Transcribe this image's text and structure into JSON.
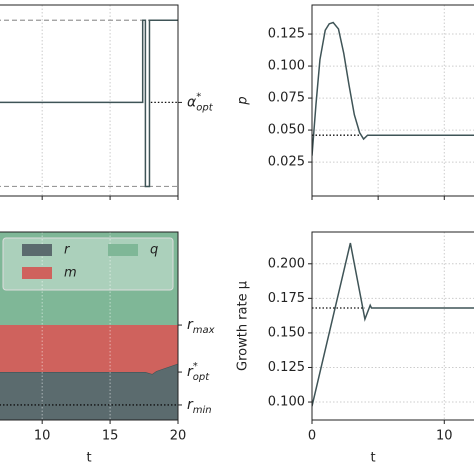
{
  "chart_data": [
    {
      "type": "line",
      "sharex": true,
      "xlim": [
        6.6,
        20
      ],
      "ylim": [
        0,
        1
      ],
      "xticks": [
        10,
        15,
        20
      ],
      "grid": true,
      "x": [
        6.6,
        17.4,
        17.4,
        17.6,
        17.6,
        17.9,
        17.9,
        20
      ],
      "series": [
        {
          "color": "#3f5457",
          "values": [
            0.49,
            0.49,
            0.92,
            0.92,
            0.05,
            0.05,
            0.92,
            0.92
          ]
        }
      ],
      "bounds": [
        0.05,
        0.92
      ],
      "refs": [
        {
          "value": 0.49,
          "x": [
            18,
            20
          ],
          "text": "α",
          "sup": "*",
          "sub": "opt"
        }
      ]
    },
    {
      "type": "line",
      "sharex": true,
      "xlim": [
        0,
        12.7
      ],
      "ylim": [
        -0.0015,
        0.1477
      ],
      "xticks": [
        0,
        5,
        10
      ],
      "yticks": [
        {
          "value": 0.025,
          "label": "0.025"
        },
        {
          "value": 0.05,
          "label": "0.050"
        },
        {
          "value": 0.075,
          "label": "0.075"
        },
        {
          "value": 0.1,
          "label": "0.100"
        },
        {
          "value": 0.125,
          "label": "0.125"
        }
      ],
      "ylabel": "p",
      "grid": true,
      "x": [
        0,
        0.3,
        0.6,
        1,
        1.3,
        1.6,
        2,
        2.4,
        2.8,
        3.2,
        3.6,
        3.9,
        4.2,
        4.5,
        12.7
      ],
      "series": [
        {
          "color": "#3f5457",
          "values": [
            0.03,
            0.07,
            0.105,
            0.128,
            0.133,
            0.134,
            0.129,
            0.11,
            0.085,
            0.062,
            0.048,
            0.043,
            0.046,
            0.046,
            0.046
          ]
        }
      ],
      "refs": [
        {
          "value": 0.046,
          "x": [
            0,
            3.7
          ]
        }
      ]
    },
    {
      "type": "area",
      "xlim": [
        6.6,
        20
      ],
      "ylim": [
        0,
        1
      ],
      "xticks": [
        10,
        15,
        20
      ],
      "xlabel": "t",
      "grid": true,
      "x": [
        6.6,
        17.6,
        18.1,
        18.4,
        20
      ],
      "series": [
        {
          "name": "r",
          "color": "#5b6b6e",
          "values": [
            0.255,
            0.255,
            0.245,
            0.26,
            0.3
          ]
        },
        {
          "name": "m",
          "color": "#cf625d",
          "values": [
            0.25,
            0.25,
            0.26,
            0.245,
            0.205
          ]
        },
        {
          "name": "q",
          "color": "#7fb797",
          "values": [
            0.495,
            0.495,
            0.495,
            0.495,
            0.495
          ]
        }
      ],
      "refs": [
        {
          "value": 0.505,
          "text": "r",
          "sub": "max"
        },
        {
          "value": 0.255,
          "text": "r",
          "sup": "*",
          "sub": "opt"
        },
        {
          "value": 0.08,
          "text": "r",
          "sub": "min",
          "x": [
            6.6,
            20
          ]
        }
      ]
    },
    {
      "type": "line",
      "xlim": [
        0,
        12.7
      ],
      "ylim": [
        0.087,
        0.223
      ],
      "xticks": [
        0,
        10
      ],
      "yticks": [
        {
          "value": 0.1,
          "label": "0.100"
        },
        {
          "value": 0.125,
          "label": "0.125"
        },
        {
          "value": 0.15,
          "label": "0.150"
        },
        {
          "value": 0.175,
          "label": "0.175"
        },
        {
          "value": 0.2,
          "label": "0.200"
        }
      ],
      "ylabel": "Growth rate μ",
      "xlabel": "t",
      "grid": true,
      "x": [
        0,
        2.9,
        4,
        4.4,
        4.5,
        12.7
      ],
      "series": [
        {
          "color": "#3f5457",
          "values": [
            0.097,
            0.215,
            0.16,
            0.17,
            0.168,
            0.168
          ]
        }
      ],
      "refs": [
        {
          "value": 0.168,
          "x": [
            0,
            4
          ]
        }
      ]
    }
  ]
}
